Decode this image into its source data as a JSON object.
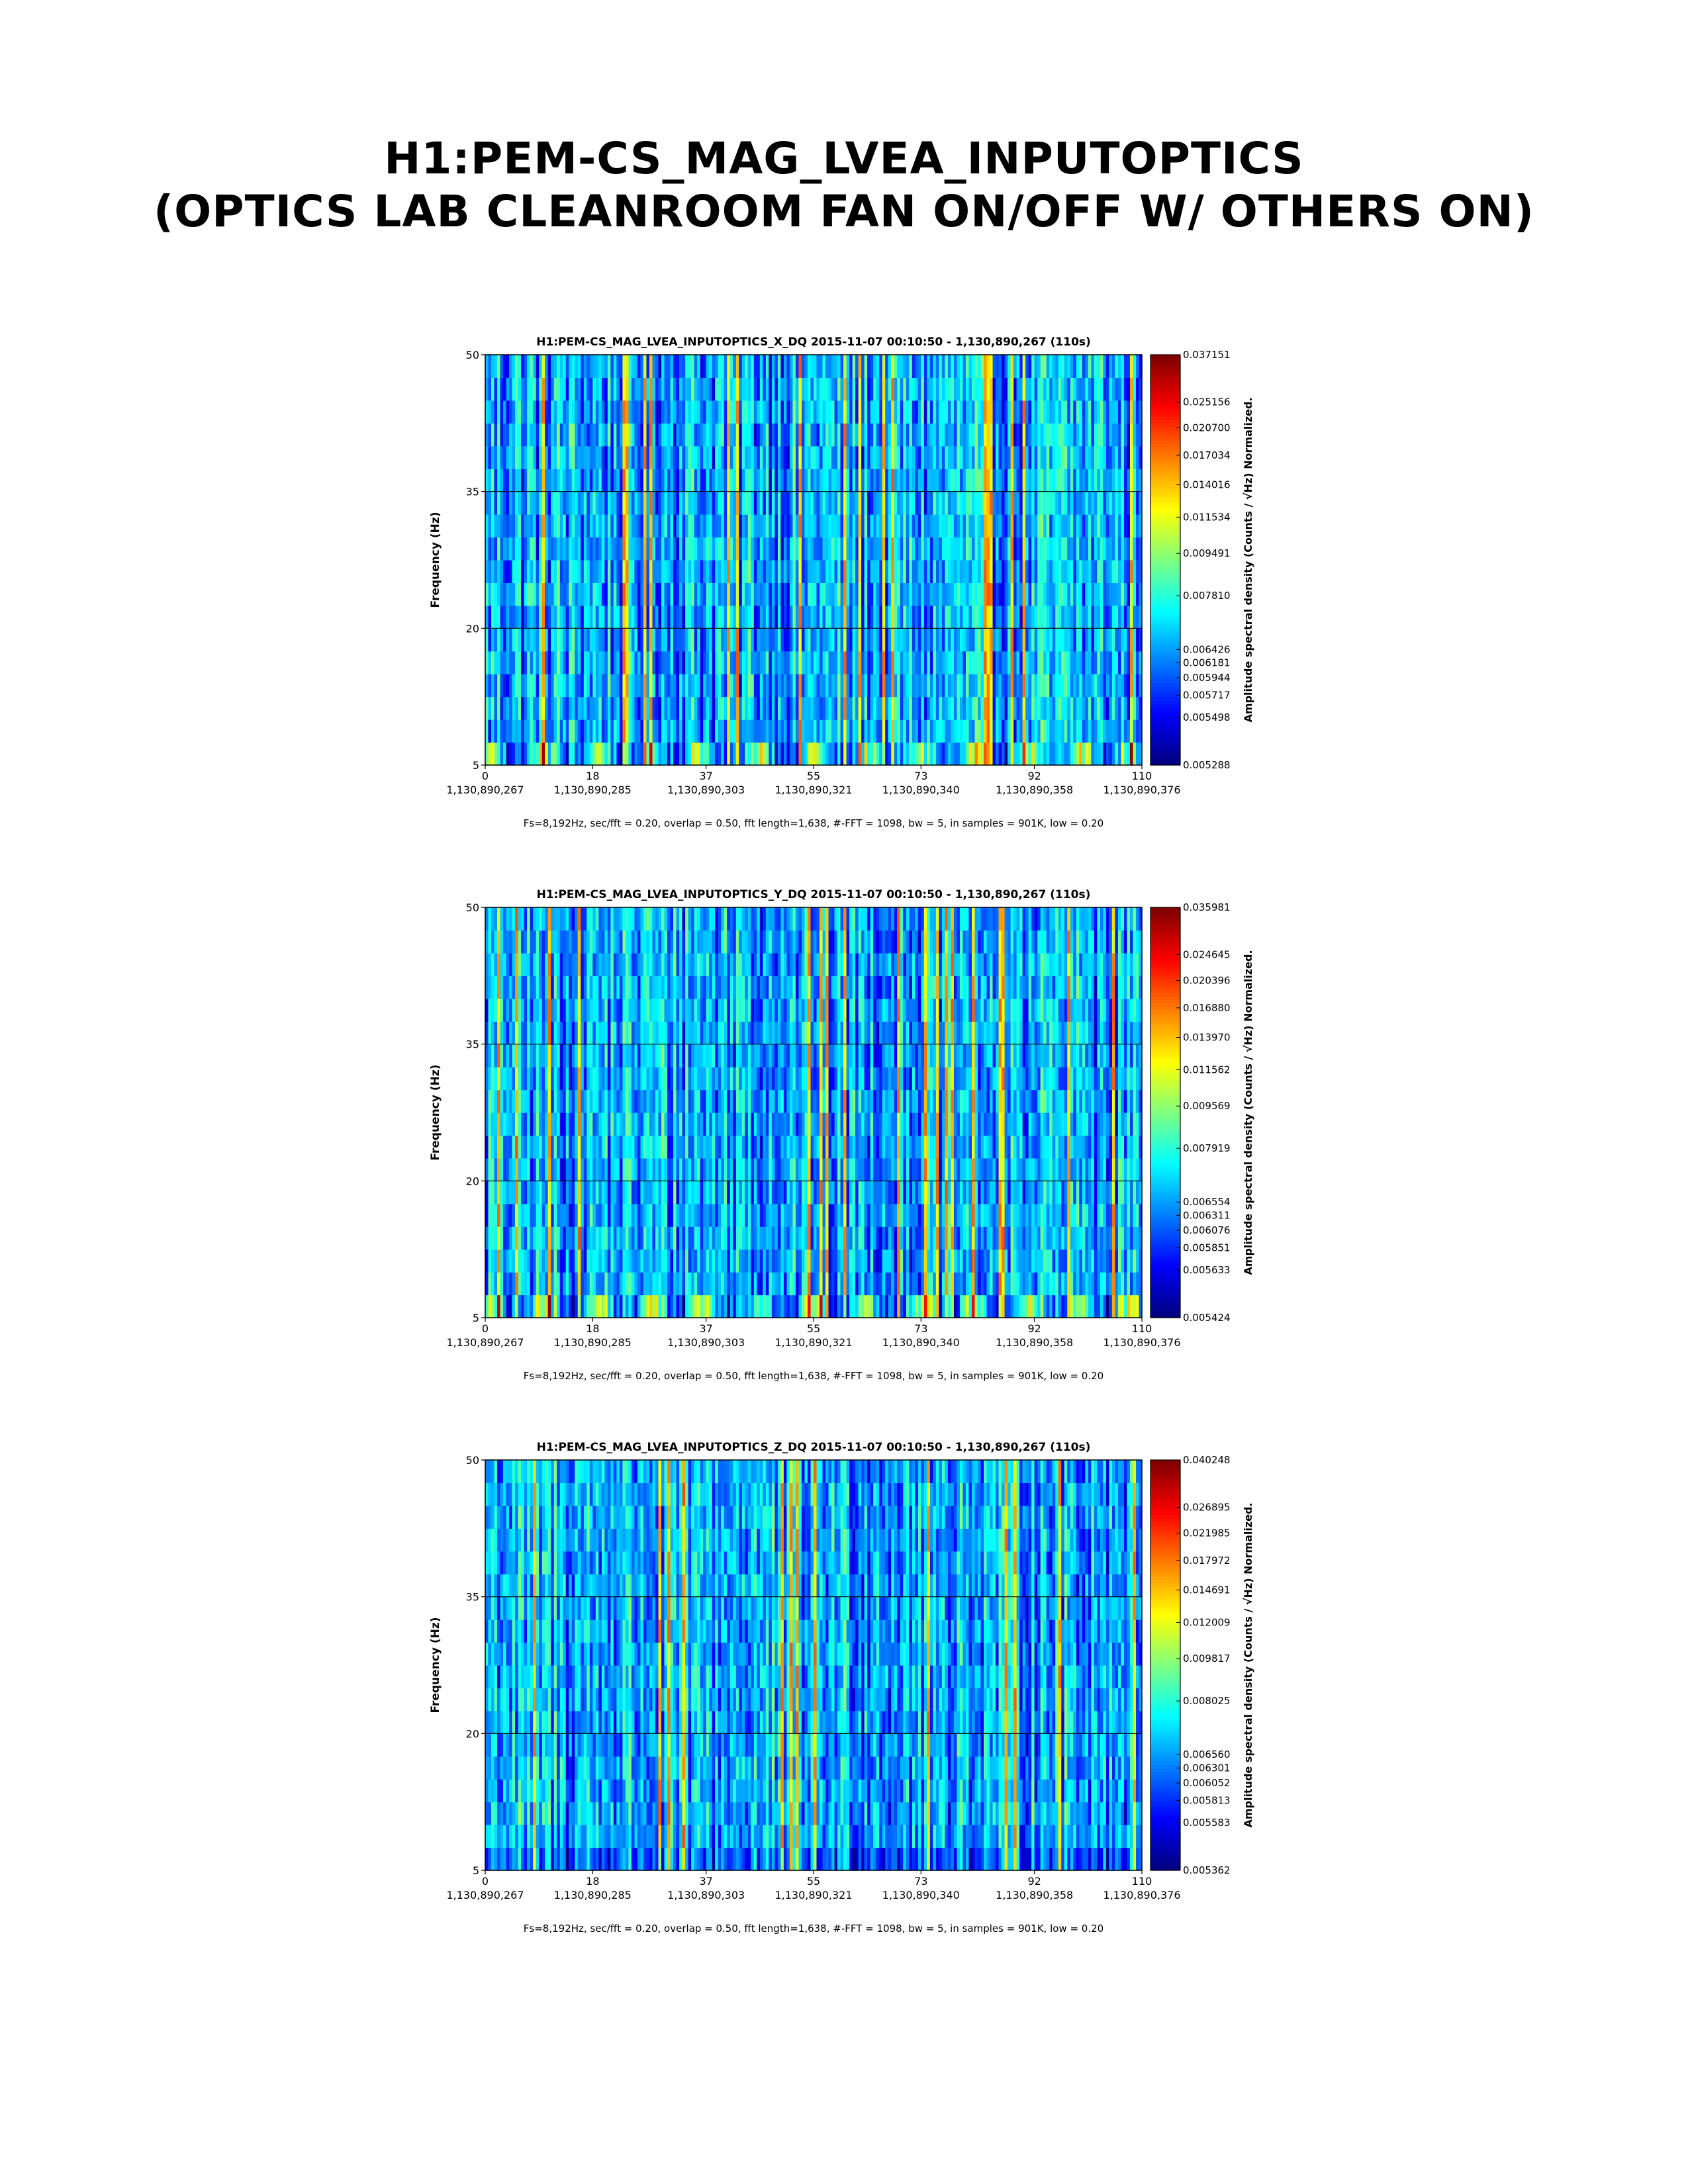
{
  "page_title": {
    "line1": "H1:PEM-CS_MAG_LVEA_INPUTOPTICS",
    "line2": "(OPTICS LAB CLEANROOM FAN ON/OFF W/ OTHERS ON)"
  },
  "chart_data": [
    {
      "type": "heatmap",
      "title": "H1:PEM-CS_MAG_LVEA_INPUTOPTICS_X_DQ 2015-11-07 00:10:50 - 1,130,890,267 (110s)",
      "ylabel": "Frequency (Hz)",
      "colorbar_label": "Amplitude spectral density (Counts / √Hz) Normalized.",
      "footer": "Fs=8,192Hz, sec/fft = 0.20, overlap = 0.50, fft length=1,638, #-FFT = 1098, bw = 5, in samples = 901K, low = 0.20",
      "xlim": [
        0,
        110
      ],
      "ylim": [
        5,
        50
      ],
      "x_ticks": [
        0,
        18,
        37,
        55,
        73,
        92,
        110
      ],
      "x_ticks_gps": [
        "1,130,890,267",
        "1,130,890,285",
        "1,130,890,303",
        "1,130,890,321",
        "1,130,890,340",
        "1,130,890,358",
        "1,130,890,376"
      ],
      "y_ticks": [
        5,
        20,
        35,
        50
      ],
      "grid": true,
      "colorbar_ticks": [
        "0.037151",
        "0.025156",
        "0.020700",
        "0.017034",
        "0.014016",
        "0.011534",
        "0.009491",
        "0.007810",
        "0.006426",
        "0.006181",
        "0.005944",
        "0.005717",
        "0.005498",
        "0.005288"
      ],
      "low_band_burst_times": [
        1,
        10,
        19,
        28,
        36,
        46,
        55,
        64,
        73,
        82,
        91,
        100,
        108
      ]
    },
    {
      "type": "heatmap",
      "title": "H1:PEM-CS_MAG_LVEA_INPUTOPTICS_Y_DQ 2015-11-07 00:10:50 - 1,130,890,267 (110s)",
      "ylabel": "Frequency (Hz)",
      "colorbar_label": "Amplitude spectral density (Counts / √Hz) Normalized.",
      "footer": "Fs=8,192Hz, sec/fft = 0.20, overlap = 0.50, fft length=1,638, #-FFT = 1098, bw = 5, in samples = 901K, low = 0.20",
      "xlim": [
        0,
        110
      ],
      "ylim": [
        5,
        50
      ],
      "x_ticks": [
        0,
        18,
        37,
        55,
        73,
        92,
        110
      ],
      "x_ticks_gps": [
        "1,130,890,267",
        "1,130,890,285",
        "1,130,890,303",
        "1,130,890,321",
        "1,130,890,340",
        "1,130,890,358",
        "1,130,890,376"
      ],
      "y_ticks": [
        5,
        20,
        35,
        50
      ],
      "grid": true,
      "colorbar_ticks": [
        "0.035981",
        "0.024645",
        "0.020396",
        "0.016880",
        "0.013970",
        "0.011562",
        "0.009569",
        "0.007919",
        "0.006554",
        "0.006311",
        "0.006076",
        "0.005851",
        "0.005633",
        "0.005424"
      ],
      "low_band_burst_times": [
        1,
        10,
        19,
        28,
        36,
        46,
        55,
        64,
        73,
        82,
        91,
        100,
        108
      ]
    },
    {
      "type": "heatmap",
      "title": "H1:PEM-CS_MAG_LVEA_INPUTOPTICS_Z_DQ 2015-11-07 00:10:50 - 1,130,890,267 (110s)",
      "ylabel": "Frequency (Hz)",
      "colorbar_label": "Amplitude spectral density (Counts / √Hz) Normalized.",
      "footer": "Fs=8,192Hz, sec/fft = 0.20, overlap = 0.50, fft length=1,638, #-FFT = 1098, bw = 5, in samples = 901K, low = 0.20",
      "xlim": [
        0,
        110
      ],
      "ylim": [
        5,
        50
      ],
      "x_ticks": [
        0,
        18,
        37,
        55,
        73,
        92,
        110
      ],
      "x_ticks_gps": [
        "1,130,890,267",
        "1,130,890,285",
        "1,130,890,303",
        "1,130,890,321",
        "1,130,890,340",
        "1,130,890,358",
        "1,130,890,376"
      ],
      "y_ticks": [
        5,
        20,
        35,
        50
      ],
      "grid": true,
      "colorbar_ticks": [
        "0.040248",
        "0.026895",
        "0.021985",
        "0.017972",
        "0.014691",
        "0.012009",
        "0.009817",
        "0.008025",
        "0.006560",
        "0.006301",
        "0.006052",
        "0.005813",
        "0.005583",
        "0.005362"
      ],
      "low_band_burst_times": []
    }
  ]
}
